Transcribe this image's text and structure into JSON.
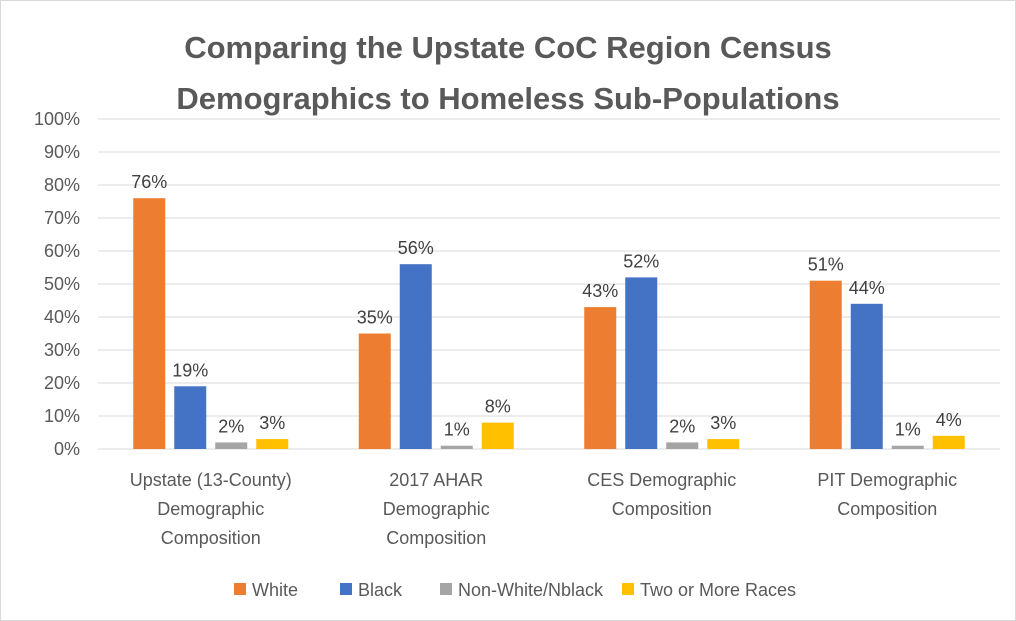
{
  "chart_data": {
    "type": "bar",
    "title_lines": [
      "Comparing the Upstate CoC Region Census",
      "Demographics to Homeless Sub-Populations"
    ],
    "categories": [
      [
        "Upstate (13-County)",
        "Demographic",
        "Composition"
      ],
      [
        "2017 AHAR",
        "Demographic",
        "Composition"
      ],
      [
        "CES Demographic",
        "Composition"
      ],
      [
        "PIT Demographic",
        "Composition"
      ]
    ],
    "series": [
      {
        "name": "White",
        "color": "#ED7D31",
        "values": [
          76,
          35,
          43,
          51
        ],
        "labels": [
          "76%",
          "35%",
          "43%",
          "51%"
        ]
      },
      {
        "name": "Black",
        "color": "#4472C4",
        "values": [
          19,
          56,
          52,
          44
        ],
        "labels": [
          "19%",
          "56%",
          "52%",
          "44%"
        ]
      },
      {
        "name": "Non-White/Nblack",
        "color": "#A5A5A5",
        "values": [
          2,
          1,
          2,
          1
        ],
        "labels": [
          "2%",
          "1%",
          "2%",
          "1%"
        ]
      },
      {
        "name": "Two or More Races",
        "color": "#FFC000",
        "values": [
          3,
          8,
          3,
          4
        ],
        "labels": [
          "3%",
          "8%",
          "3%",
          "4%"
        ]
      }
    ],
    "y_ticks": [
      "0%",
      "10%",
      "20%",
      "30%",
      "40%",
      "50%",
      "60%",
      "70%",
      "80%",
      "90%",
      "100%"
    ],
    "ylim": [
      0,
      100
    ],
    "grid": true,
    "legend_position": "bottom"
  }
}
